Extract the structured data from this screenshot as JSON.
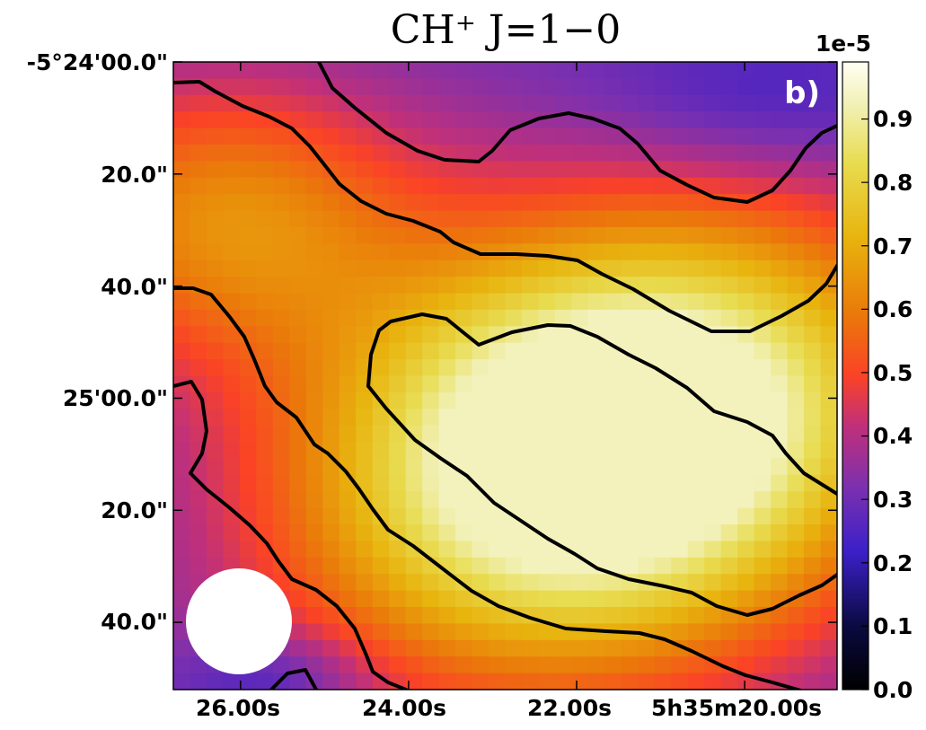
{
  "chart_data": {
    "type": "heatmap",
    "title": "CH⁺ J=1−0",
    "panel_label": "b)",
    "colormap": "gnuplot2-like (black-blue-purple-red-orange-yellow-white)",
    "x_axis": {
      "label": "",
      "tick_labels": [
        "26.00s",
        "24.00s",
        "22.00s",
        "5h35m20.00s"
      ],
      "tick_values_s": [
        26.0,
        24.0,
        22.0,
        20.0
      ],
      "range_s": [
        26.8,
        18.9
      ]
    },
    "y_axis": {
      "label": "",
      "tick_labels": [
        "-5°24'00.0\"",
        "20.0\"",
        "40.0\"",
        "25'00.0\"",
        "20.0\"",
        "40.0\""
      ],
      "tick_values_arcsec": [
        0,
        20,
        40,
        60,
        80,
        100
      ],
      "range_arcsec": [
        0,
        112
      ]
    },
    "colorbar": {
      "exponent_label": "1e-5",
      "tick_labels": [
        "0.0",
        "0.1",
        "0.2",
        "0.3",
        "0.4",
        "0.5",
        "0.6",
        "0.7",
        "0.8",
        "0.9"
      ],
      "tick_values": [
        0.0,
        0.1,
        0.2,
        0.3,
        0.4,
        0.5,
        0.6,
        0.7,
        0.8,
        0.9
      ],
      "vmin": 0.0,
      "vmax": 0.99
    },
    "contour_levels": [
      0.3,
      0.5,
      0.7
    ],
    "peak": {
      "x_s": 21.6,
      "y_arcsec": 68,
      "value": 0.9
    },
    "beam": {
      "shape": "circle",
      "center_x_s": 26.0,
      "center_y_arcsec": 100,
      "diameter_arcsec": 19
    },
    "colors": {
      "contour": "#000000",
      "beam": "#ffffff",
      "panel_label": "#ffffff"
    }
  }
}
